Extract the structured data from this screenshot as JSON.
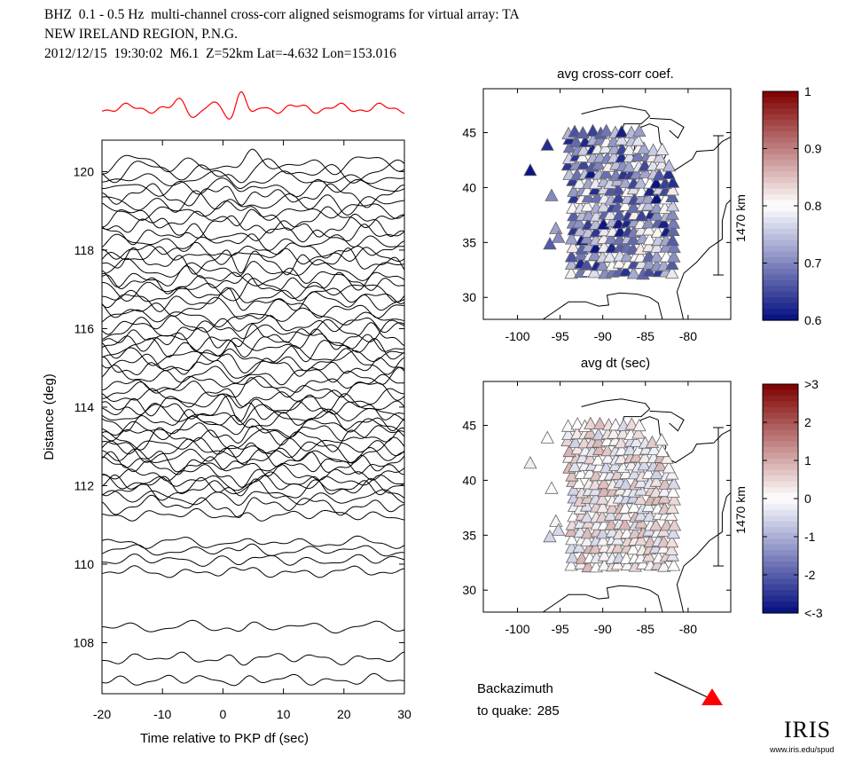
{
  "header": {
    "line1": "BHZ  0.1 - 0.5 Hz  multi-channel cross-corr aligned seismograms for virtual array: TA",
    "line2": "NEW IRELAND REGION, P.N.G.",
    "line3": "2012/12/15  19:30:02  M6.1  Z=52km Lat=-4.632 Lon=153.016"
  },
  "colors": {
    "stack": "#ff0000",
    "traces": "#000000",
    "quake_marker": "#ff0000"
  },
  "chart_data": [
    {
      "type": "line",
      "name": "record-section",
      "xlabel": "Time relative to PKP df (sec)",
      "ylabel": "Distance (deg)",
      "xlim": [
        -20,
        30
      ],
      "ylim": [
        106.7,
        120.8
      ],
      "xticks": [
        -20,
        -10,
        0,
        10,
        20,
        30
      ],
      "yticks": [
        108,
        110,
        112,
        114,
        116,
        118,
        120
      ],
      "grid": false,
      "trace_distances_deg": [
        107.05,
        107.6,
        108.4,
        109.8,
        110.1,
        110.35,
        110.55,
        111.25,
        111.5,
        111.7,
        111.9,
        112.0,
        112.1,
        112.3,
        112.5,
        112.6,
        112.75,
        112.9,
        113.0,
        113.2,
        113.35,
        113.5,
        113.65,
        113.8,
        113.95,
        114.05,
        114.25,
        114.45,
        114.6,
        114.8,
        115.0,
        115.15,
        115.3,
        115.5,
        115.65,
        115.8,
        115.95,
        116.1,
        116.3,
        116.5,
        116.7,
        116.85,
        117.0,
        117.15,
        117.3,
        117.5,
        117.7,
        117.85,
        118.0,
        118.2,
        118.4,
        118.6,
        118.8,
        119.0,
        119.2,
        119.4,
        119.6,
        119.8,
        120.0,
        120.2
      ]
    },
    {
      "type": "scatter",
      "name": "avg-cross-corr-map",
      "title": "avg cross-corr coef.",
      "xticks": [
        -100,
        -95,
        -90,
        -85,
        -80
      ],
      "yticks": [
        30,
        35,
        40,
        45
      ],
      "xlim": [
        -104,
        -75
      ],
      "ylim": [
        28,
        49
      ],
      "scale_bar_label": "1470 km",
      "colorbar": {
        "ticks": [
          "1",
          "0.9",
          "0.8",
          "0.7",
          "0.6"
        ],
        "min": 0.6,
        "max": 1.0
      },
      "stations_note_lonlat_value": [
        [
          -96.5,
          43.8,
          0.62
        ],
        [
          -98.5,
          41.5,
          0.6
        ],
        [
          -96,
          39.2,
          0.7
        ],
        [
          -95.5,
          36.2,
          0.72
        ],
        [
          -95.2,
          35.4,
          0.7
        ],
        [
          -96.2,
          34.8,
          0.66
        ]
      ]
    },
    {
      "type": "scatter",
      "name": "avg-dt-map",
      "title": "avg dt (sec)",
      "xticks": [
        -100,
        -95,
        -90,
        -85,
        -80
      ],
      "yticks": [
        30,
        35,
        40,
        45
      ],
      "xlim": [
        -104,
        -75
      ],
      "ylim": [
        28,
        49
      ],
      "scale_bar_label": "1470 km",
      "colorbar": {
        "ticks": [
          ">3",
          "2",
          "1",
          "0",
          "-1",
          "-2",
          "<-3"
        ],
        "min": -3,
        "max": 3
      }
    }
  ],
  "backazimuth": {
    "line1": "Backazimuth",
    "line2_label": "to quake:",
    "value": "285"
  },
  "logo": {
    "text": "IRIS",
    "url": "www.iris.edu/spud"
  }
}
